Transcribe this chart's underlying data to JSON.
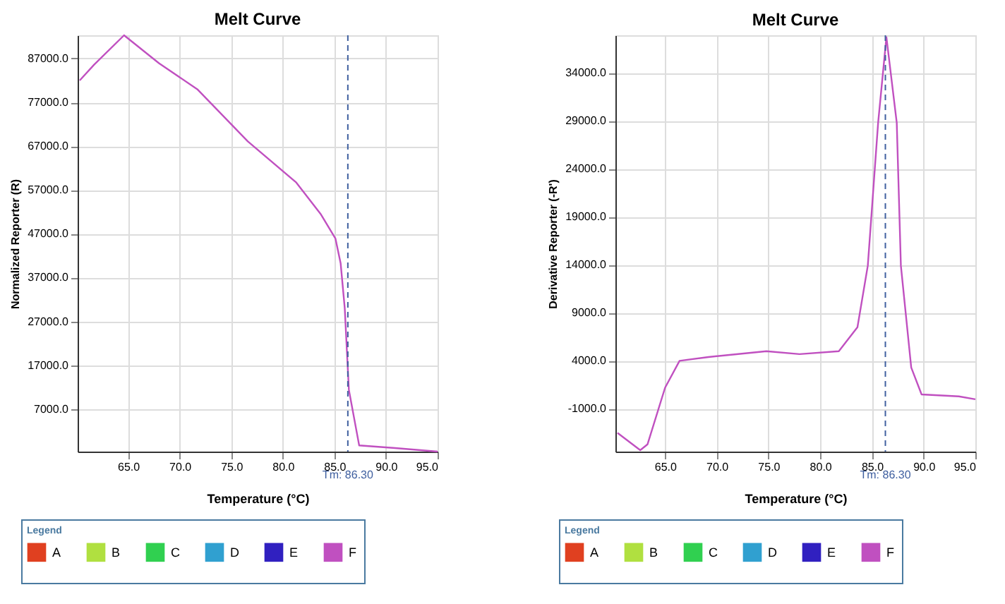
{
  "chart_data": [
    {
      "type": "line",
      "title": "Melt Curve",
      "xlabel": "Temperature (°C)",
      "ylabel": "Normalized Reporter (R)",
      "legend_title": "Legend",
      "xlim": [
        60.1,
        95
      ],
      "xticks": [
        {
          "value": 65,
          "label": "65.0"
        },
        {
          "value": 70,
          "label": "70.0"
        },
        {
          "value": 75,
          "label": "75.0"
        },
        {
          "value": 80,
          "label": "80.0"
        },
        {
          "value": 85,
          "label": "85.0"
        },
        {
          "value": 90,
          "label": "90.0"
        },
        {
          "value": 95,
          "label": "95.0"
        }
      ],
      "ylim": [
        -2700,
        92300
      ],
      "yticks": [
        {
          "value": 7000,
          "label": "7000.0"
        },
        {
          "value": 17000,
          "label": "17000.0"
        },
        {
          "value": 27000,
          "label": "27000.0"
        },
        {
          "value": 37000,
          "label": "37000.0"
        },
        {
          "value": 47000,
          "label": "47000.0"
        },
        {
          "value": 57000,
          "label": "57000.0"
        },
        {
          "value": 67000,
          "label": "67000.0"
        },
        {
          "value": 77000,
          "label": "77000.0"
        },
        {
          "value": 87000,
          "label": "87000.0"
        }
      ],
      "x": [
        60.3,
        61.7,
        64.6,
        68.0,
        71.7,
        76.6,
        81.3,
        83.7,
        85.1,
        85.6,
        86.0,
        86.4,
        87.4,
        90.9,
        95.0
      ],
      "series": [
        {
          "name": "A",
          "color": "#e04020",
          "values": [
            null,
            null,
            null,
            null,
            null,
            null,
            null,
            null,
            null,
            null,
            null,
            null,
            null,
            null,
            null
          ]
        },
        {
          "name": "B",
          "color": "#b0e040",
          "values": [
            null,
            null,
            null,
            null,
            null,
            null,
            null,
            null,
            null,
            null,
            null,
            null,
            null,
            null,
            null
          ]
        },
        {
          "name": "C",
          "color": "#30d050",
          "values": [
            null,
            null,
            null,
            null,
            null,
            null,
            null,
            null,
            null,
            null,
            null,
            null,
            null,
            null,
            null
          ]
        },
        {
          "name": "D",
          "color": "#30a0d0",
          "values": [
            null,
            null,
            null,
            null,
            null,
            null,
            null,
            null,
            null,
            null,
            null,
            null,
            null,
            null,
            null
          ]
        },
        {
          "name": "E",
          "color": "#3020c0",
          "values": [
            null,
            null,
            null,
            null,
            null,
            null,
            null,
            null,
            null,
            null,
            null,
            null,
            null,
            null,
            null
          ]
        },
        {
          "name": "F",
          "color": "#c050c0",
          "values": [
            82000,
            85600,
            92300,
            85900,
            80000,
            68100,
            58700,
            51400,
            45900,
            40300,
            30000,
            11400,
            -1300,
            -1900,
            -2700
          ]
        }
      ],
      "ref_lines": [
        {
          "axis": "x",
          "value": 86.3,
          "label": "Tm: 86.30",
          "color": "#4060a0",
          "line_style": "dashed"
        }
      ],
      "grid": true,
      "legend": "bottom",
      "marker": "none",
      "line_style": "solid"
    },
    {
      "type": "line",
      "title": "Melt Curve",
      "xlabel": "Temperature (°C)",
      "ylabel": "Derivative Reporter (-R')",
      "legend_title": "Legend",
      "xlim": [
        60.2,
        95
      ],
      "xticks": [
        {
          "value": 65,
          "label": "65.0"
        },
        {
          "value": 70,
          "label": "70.0"
        },
        {
          "value": 75,
          "label": "75.0"
        },
        {
          "value": 80,
          "label": "80.0"
        },
        {
          "value": 85,
          "label": "85.0"
        },
        {
          "value": 90,
          "label": "90.0"
        },
        {
          "value": 95,
          "label": "95.0"
        }
      ],
      "ylim": [
        -5450,
        37900
      ],
      "yticks": [
        {
          "value": -1000,
          "label": "-1000.0"
        },
        {
          "value": 4000,
          "label": "4000.0"
        },
        {
          "value": 9000,
          "label": "9000.0"
        },
        {
          "value": 14000,
          "label": "14000.0"
        },
        {
          "value": 19000,
          "label": "19000.0"
        },
        {
          "value": 24000,
          "label": "24000.0"
        },
        {
          "value": 29000,
          "label": "29000.0"
        },
        {
          "value": 34000,
          "label": "34000.0"
        }
      ],
      "x": [
        60.4,
        62.6,
        63.3,
        65.0,
        66.4,
        69.2,
        74.8,
        78.0,
        81.8,
        83.6,
        84.6,
        85.6,
        86.4,
        87.4,
        87.8,
        88.8,
        89.8,
        93.4,
        95.0
      ],
      "series": [
        {
          "name": "A",
          "color": "#e04020",
          "values": [
            null,
            null,
            null,
            null,
            null,
            null,
            null,
            null,
            null,
            null,
            null,
            null,
            null,
            null,
            null,
            null,
            null,
            null,
            null
          ]
        },
        {
          "name": "B",
          "color": "#b0e040",
          "values": [
            null,
            null,
            null,
            null,
            null,
            null,
            null,
            null,
            null,
            null,
            null,
            null,
            null,
            null,
            null,
            null,
            null,
            null,
            null
          ]
        },
        {
          "name": "C",
          "color": "#30d050",
          "values": [
            null,
            null,
            null,
            null,
            null,
            null,
            null,
            null,
            null,
            null,
            null,
            null,
            null,
            null,
            null,
            null,
            null,
            null,
            null
          ]
        },
        {
          "name": "D",
          "color": "#30a0d0",
          "values": [
            null,
            null,
            null,
            null,
            null,
            null,
            null,
            null,
            null,
            null,
            null,
            null,
            null,
            null,
            null,
            null,
            null,
            null,
            null
          ]
        },
        {
          "name": "E",
          "color": "#3020c0",
          "values": [
            null,
            null,
            null,
            null,
            null,
            null,
            null,
            null,
            null,
            null,
            null,
            null,
            null,
            null,
            null,
            null,
            null,
            null,
            null
          ]
        },
        {
          "name": "F",
          "color": "#c050c0",
          "values": [
            -3500,
            -5300,
            -4700,
            1200,
            4000,
            4400,
            5000,
            4700,
            5000,
            7500,
            13900,
            28800,
            37700,
            28800,
            13900,
            3300,
            500,
            300,
            0
          ]
        }
      ],
      "ref_lines": [
        {
          "axis": "x",
          "value": 86.3,
          "label": "Tm: 86.30",
          "color": "#4060a0",
          "line_style": "dashed"
        }
      ],
      "grid": true,
      "legend": "bottom",
      "marker": "none",
      "line_style": "solid"
    }
  ]
}
